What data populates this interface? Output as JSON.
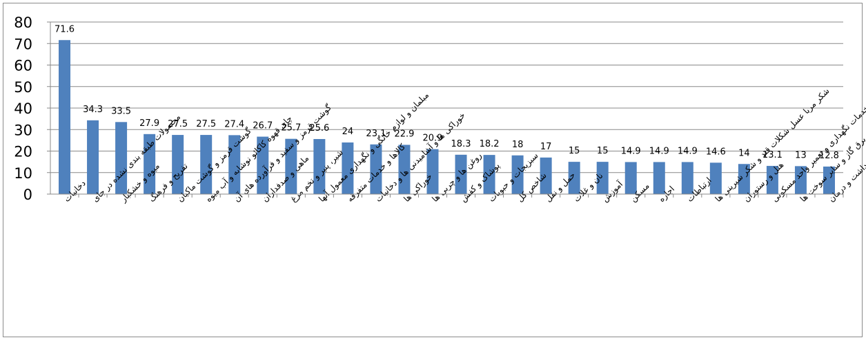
{
  "chart_data": {
    "type": "bar",
    "title": "",
    "xlabel": "",
    "ylabel": "",
    "ylim": [
      0,
      80
    ],
    "yticks": [
      0,
      10,
      20,
      30,
      40,
      50,
      60,
      70,
      80
    ],
    "grid": true,
    "legend": "none",
    "bar_color": "#4f81bd",
    "categories": [
      "دخانیات",
      "محصولات طبقه بندی نشده در جای",
      "میوه و خشکبار",
      "تفریح و فرهنگ",
      "گوشت قرمز و گوشت ماکیان",
      "چای قهوه کاکائو نوشابه و آب میوه",
      "گوشت قرمز و سفید و فرآورده های آن",
      "ماهی و صدفداران",
      "شیر، پنیر و تخم مرغ",
      "مبلمان و لوازم خانگی و نگهداری معمول آنها",
      "کالاها و خدمات متفرقه",
      "خوراکی ها و آشامیدنی ها و دخانیات",
      "خوراکی ها",
      "روغن ها و چربی ها",
      "پوشاک و کفش",
      "سبزیجات و حبوبات",
      "شاخص کل",
      "حمل و نقل",
      "نان و غلات",
      "آموزش",
      "مسکن",
      "اجاره",
      "ارتباطات",
      "شکر مربا عسل شکلات قند و شکر شیرینی ها",
      "هتل و رستوران",
      "خدمات نگهداری و تعمیر واحد مسکونی",
      "مسکن، آب برق گاز و سایر سوخت ها",
      "بهداشت و درمان"
    ],
    "values": [
      71.6,
      34.3,
      33.5,
      27.9,
      27.5,
      27.5,
      27.4,
      26.7,
      25.7,
      25.6,
      24,
      23.1,
      22.9,
      20.9,
      18.3,
      18.2,
      18,
      17,
      15,
      15,
      14.9,
      14.9,
      14.9,
      14.6,
      14,
      13.1,
      13,
      12.8
    ]
  }
}
